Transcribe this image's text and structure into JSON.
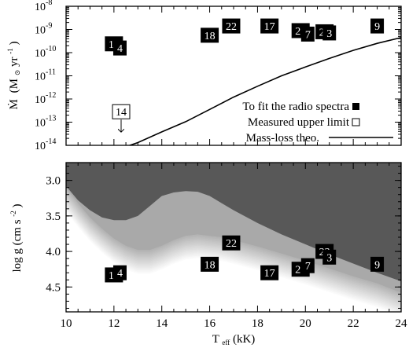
{
  "chart_data": [
    {
      "type": "scatter",
      "panel": "top",
      "xlabel": "",
      "ylabel_html": [
        "Ṁ",
        "(M",
        "⊙",
        " yr",
        "-1",
        ")"
      ],
      "xlim": [
        10,
        24
      ],
      "ylim_log10": [
        -14,
        -8
      ],
      "y_scale": "log",
      "y_ticks": [
        {
          "exp": -8,
          "base": "10",
          "sup": "-8"
        },
        {
          "exp": -9,
          "base": "10",
          "sup": "-9"
        },
        {
          "exp": -10,
          "base": "10",
          "sup": "-10"
        },
        {
          "exp": -11,
          "base": "10",
          "sup": "-11"
        },
        {
          "exp": -12,
          "base": "10",
          "sup": "-12"
        },
        {
          "exp": -13,
          "base": "10",
          "sup": "-13"
        },
        {
          "exp": -14,
          "base": "10",
          "sup": "-14"
        }
      ],
      "markers_filled": [
        {
          "label": "16",
          "x": 12.0,
          "log_y": -9.62
        },
        {
          "label": "4",
          "x": 12.25,
          "log_y": -9.8
        },
        {
          "label": "18",
          "x": 16.0,
          "log_y": -9.25
        },
        {
          "label": "22",
          "x": 16.9,
          "log_y": -8.85
        },
        {
          "label": "17",
          "x": 18.5,
          "log_y": -8.85
        },
        {
          "label": "27",
          "x": 19.8,
          "log_y": -9.05
        },
        {
          "label": "7",
          "x": 20.1,
          "log_y": -9.2
        },
        {
          "label": "23",
          "x": 20.8,
          "log_y": -9.1
        },
        {
          "label": "3",
          "x": 21.0,
          "log_y": -9.15
        },
        {
          "label": "9",
          "x": 23.0,
          "log_y": -8.85
        }
      ],
      "markers_open": [
        {
          "label": "14",
          "x": 12.3,
          "log_y": -12.55
        }
      ],
      "theory_curve": {
        "x": [
          12.1,
          13,
          14,
          15,
          16,
          17,
          18,
          19,
          20,
          21,
          22,
          23,
          24
        ],
        "log_y": [
          -14.2,
          -13.88,
          -13.42,
          -12.98,
          -12.45,
          -11.92,
          -11.45,
          -11.0,
          -10.62,
          -10.25,
          -9.9,
          -9.6,
          -9.35
        ]
      },
      "legend": {
        "placement": "bottom-right",
        "items": [
          {
            "text": "To fit the radio spectra",
            "symbol": "filled-square"
          },
          {
            "text": "Measured upper limit",
            "symbol": "open-square"
          },
          {
            "text": "Mass-loss theo.",
            "symbol": "line"
          }
        ]
      }
    },
    {
      "type": "scatter",
      "panel": "bottom",
      "xlabel_base": "T",
      "xlabel_sub": "eff",
      "xlabel_unit": " (kK)",
      "ylabel_parts": [
        "log g  (cm s",
        "-2",
        ")"
      ],
      "xlim": [
        10,
        24
      ],
      "ylim": [
        4.85,
        2.75
      ],
      "x_ticks": [
        10,
        12,
        14,
        16,
        18,
        20,
        22,
        24
      ],
      "y_ticks": [
        "3.0",
        "3.5",
        "4.0",
        "4.5"
      ],
      "y_tick_values": [
        3.0,
        3.5,
        4.0,
        4.5
      ],
      "markers_filled": [
        {
          "label": "16",
          "x": 12.0,
          "y": 4.33
        },
        {
          "label": "4",
          "x": 12.25,
          "y": 4.3
        },
        {
          "label": "18",
          "x": 16.0,
          "y": 4.18
        },
        {
          "label": "22",
          "x": 16.9,
          "y": 3.88
        },
        {
          "label": "17",
          "x": 18.5,
          "y": 4.3
        },
        {
          "label": "27",
          "x": 19.8,
          "y": 4.25
        },
        {
          "label": "7",
          "x": 20.1,
          "y": 4.2
        },
        {
          "label": "23",
          "x": 20.8,
          "y": 4.0
        },
        {
          "label": "3",
          "x": 21.0,
          "y": 4.08
        },
        {
          "label": "9",
          "x": 23.0,
          "y": 4.18
        }
      ],
      "regions": {
        "dark_color": "#585858",
        "light_color": "#a9a9a9",
        "dark_boundary": {
          "x": [
            10,
            10.5,
            11,
            11.5,
            12,
            12.5,
            13,
            13.5,
            14,
            14.5,
            15,
            15.5,
            16,
            16.5,
            17,
            18,
            19,
            20,
            21,
            22,
            23,
            24
          ],
          "y": [
            3.08,
            3.28,
            3.42,
            3.52,
            3.56,
            3.56,
            3.5,
            3.36,
            3.22,
            3.17,
            3.15,
            3.16,
            3.22,
            3.32,
            3.42,
            3.6,
            3.76,
            3.9,
            4.04,
            4.17,
            4.3,
            4.42
          ]
        },
        "light_boundary": {
          "x": [
            10,
            10.5,
            11,
            11.5,
            12,
            12.5,
            13,
            13.5,
            14,
            14.5,
            15,
            15.5,
            16,
            16.5,
            17,
            18,
            19,
            20,
            21,
            22,
            23,
            24
          ],
          "y": [
            3.1,
            3.32,
            3.52,
            3.68,
            3.82,
            3.92,
            3.98,
            3.98,
            3.92,
            3.84,
            3.78,
            3.76,
            3.78,
            3.8,
            3.84,
            3.93,
            4.03,
            4.13,
            4.24,
            4.35,
            4.45,
            4.58
          ]
        },
        "gradient_depth": 0.35
      }
    }
  ]
}
